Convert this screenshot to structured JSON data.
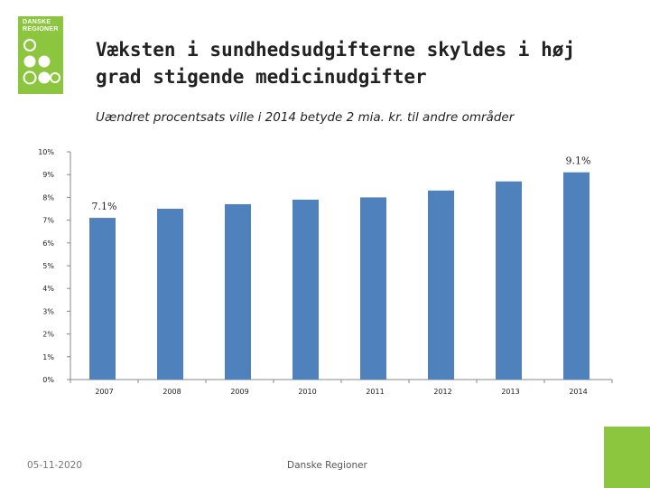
{
  "logo": {
    "text": "DANSKE\nREGIONER"
  },
  "slide": {
    "title": "Væksten i sundhedsudgifterne skyldes i høj grad stigende medicinudgifter",
    "subtitle": "Uændret procentsats ville i 2014 betyde 2 mia. kr. til andre områder"
  },
  "footer": {
    "date": "05-11-2020",
    "organization": "Danske Regioner"
  },
  "colors": {
    "bar": "#4f81bd",
    "brand_green": "#8cc63f",
    "axis": "#888888"
  },
  "chart_data": {
    "type": "bar",
    "categories": [
      "2007",
      "2008",
      "2009",
      "2010",
      "2011",
      "2012",
      "2013",
      "2014"
    ],
    "values": [
      7.1,
      7.5,
      7.7,
      7.9,
      8.0,
      8.3,
      8.7,
      9.1
    ],
    "ylim": [
      0,
      10
    ],
    "y_ticks": [
      "0%",
      "1%",
      "2%",
      "3%",
      "4%",
      "5%",
      "6%",
      "7%",
      "8%",
      "9%",
      "10%"
    ],
    "data_labels": [
      {
        "category": "2007",
        "text": "7.1%"
      },
      {
        "category": "2014",
        "text": "9.1%"
      }
    ],
    "grid": false,
    "legend": "none"
  }
}
